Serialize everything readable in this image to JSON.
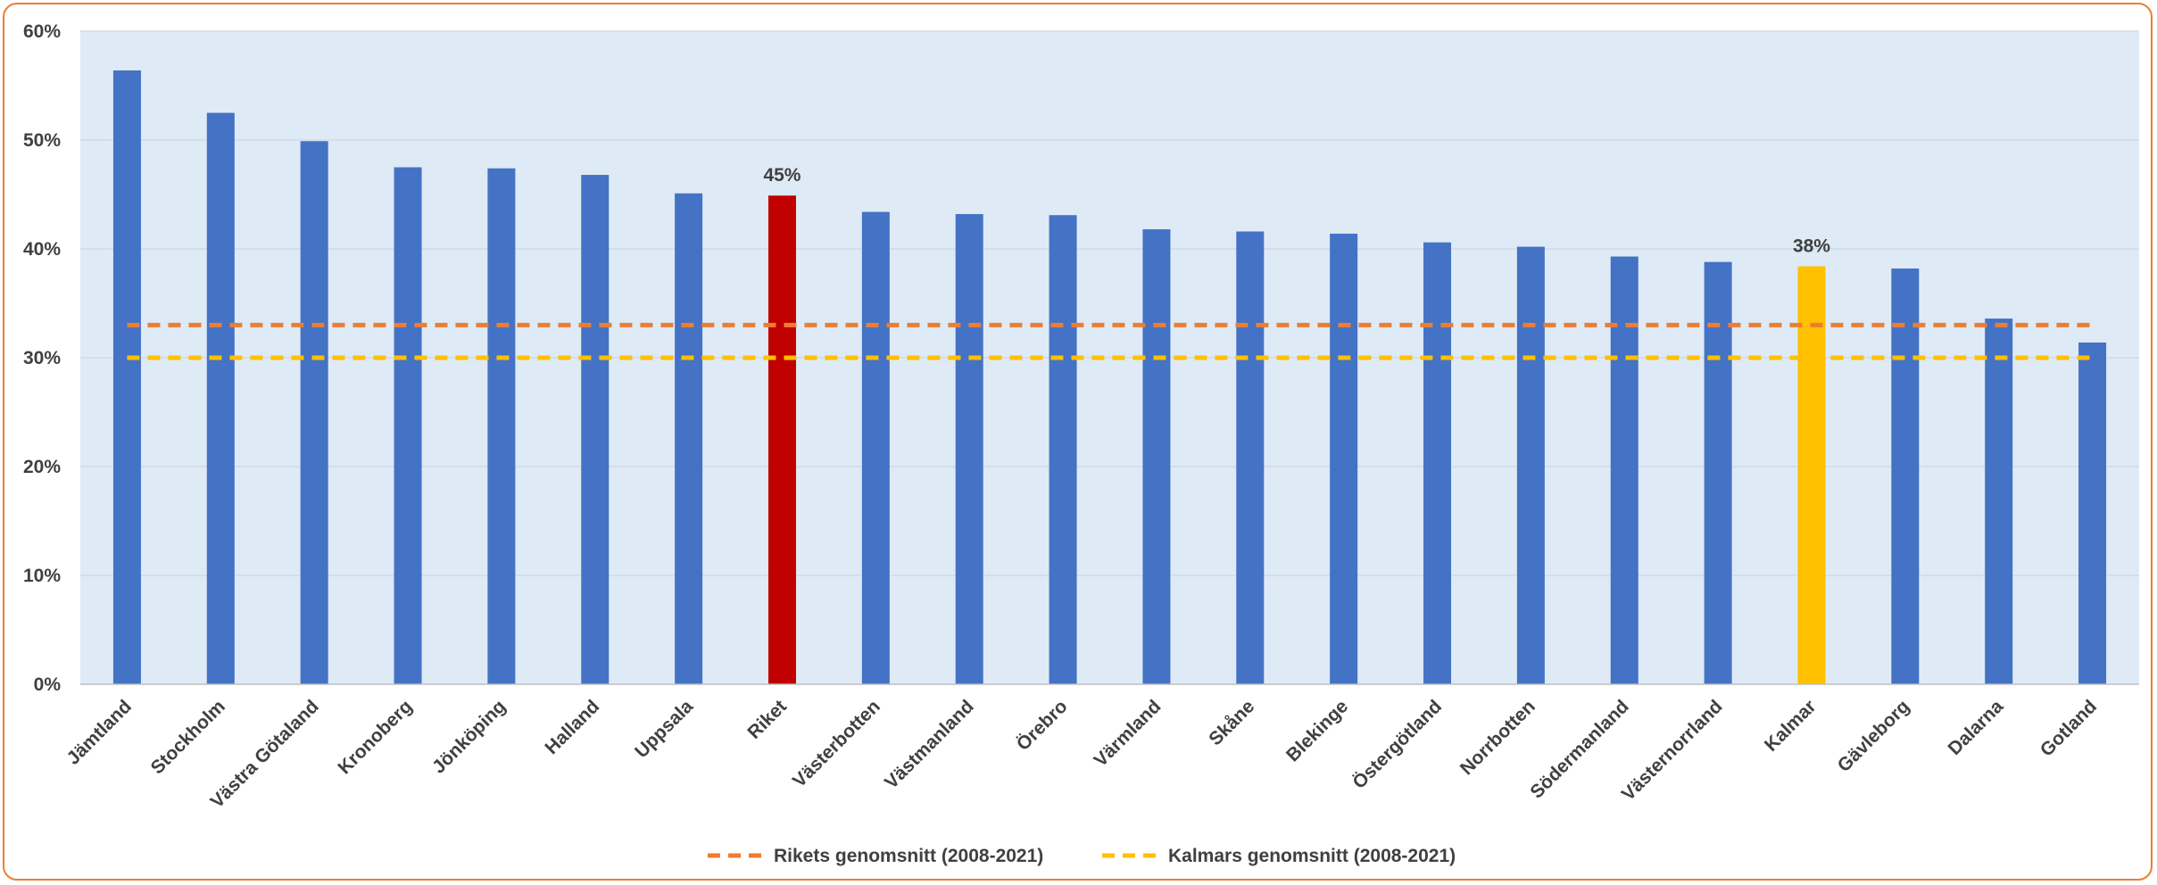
{
  "chart_data": {
    "type": "bar",
    "categories": [
      "Jämtland",
      "Stockholm",
      "Västra Götaland",
      "Kronoberg",
      "Jönköping",
      "Halland",
      "Uppsala",
      "Riket",
      "Västerbotten",
      "Västmanland",
      "Örebro",
      "Värmland",
      "Skåne",
      "Blekinge",
      "Östergötland",
      "Norrbotten",
      "Södermanland",
      "Västernorrland",
      "Kalmar",
      "Gävleborg",
      "Dalarna",
      "Gotland"
    ],
    "values": [
      56.4,
      52.5,
      49.9,
      47.5,
      47.4,
      46.8,
      45.1,
      44.9,
      43.4,
      43.2,
      43.1,
      41.8,
      41.6,
      41.4,
      40.6,
      40.2,
      39.3,
      38.8,
      38.4,
      38.2,
      33.6,
      31.4
    ],
    "bar_colors": {
      "default": "#4472C4",
      "Riket": "#C00000",
      "Kalmar": "#FFC000"
    },
    "data_labels": [
      {
        "category": "Riket",
        "text": "45%"
      },
      {
        "category": "Kalmar",
        "text": "38%"
      }
    ],
    "reference_lines": [
      {
        "name": "Rikets genomsnitt (2008-2021)",
        "value": 33,
        "color": "#ED7D31",
        "style": "dashed"
      },
      {
        "name": "Kalmars genomsnitt (2008-2021)",
        "value": 30,
        "color": "#FFC000",
        "style": "dashed"
      }
    ],
    "ylim": [
      0,
      60
    ],
    "yticks": [
      0,
      10,
      20,
      30,
      40,
      50,
      60
    ],
    "ytick_labels": [
      "0%",
      "10%",
      "20%",
      "30%",
      "40%",
      "50%",
      "60%"
    ],
    "title": "",
    "xlabel": "",
    "ylabel": "",
    "grid": true,
    "plot_background": "#DEEAF6",
    "legend_position": "bottom"
  }
}
